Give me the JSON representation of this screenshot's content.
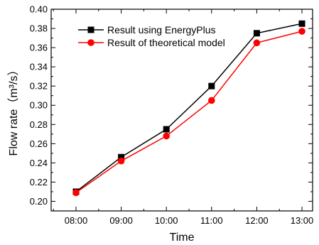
{
  "chart_data": {
    "type": "line",
    "title": "",
    "xlabel": "Time",
    "ylabel": "Flow rate（m³/s）",
    "categories": [
      "08:00",
      "09:00",
      "10:00",
      "11:00",
      "12:00",
      "13:00"
    ],
    "ylim": [
      0.19,
      0.4
    ],
    "yticks": [
      "0.20",
      "0.22",
      "0.24",
      "0.26",
      "0.28",
      "0.30",
      "0.32",
      "0.34",
      "0.36",
      "0.38",
      "0.40"
    ],
    "grid": false,
    "legend_position": "top-left",
    "series": [
      {
        "name": "Result using EnergyPlus",
        "color": "#000000",
        "marker": "square",
        "values": [
          0.21,
          0.246,
          0.275,
          0.32,
          0.375,
          0.385
        ]
      },
      {
        "name": "Result of theoretical model",
        "color": "#ff0000",
        "marker": "circle",
        "values": [
          0.209,
          0.242,
          0.268,
          0.305,
          0.365,
          0.377
        ]
      }
    ]
  }
}
